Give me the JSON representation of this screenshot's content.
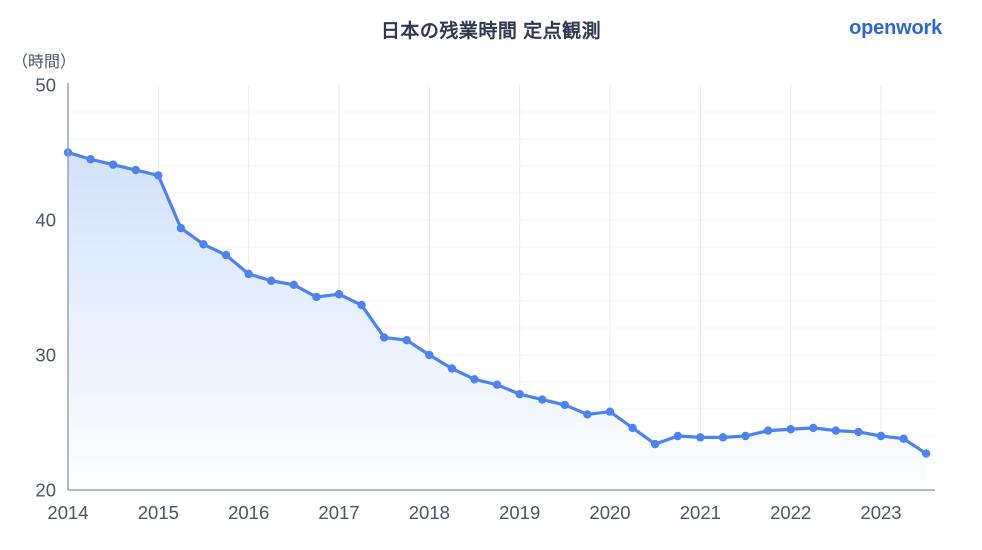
{
  "header": {
    "title": "日本の残業時間 定点観測",
    "brand": "openwork"
  },
  "chart_data": {
    "type": "line",
    "title": "日本の残業時間 定点観測",
    "xlabel": "",
    "ylabel": "（時間）",
    "ylim": [
      20,
      50
    ],
    "y_ticks": [
      50,
      40,
      30,
      20
    ],
    "x_ticks": [
      "2014",
      "2015",
      "2016",
      "2017",
      "2018",
      "2019",
      "2020",
      "2021",
      "2022",
      "2023"
    ],
    "grid": true,
    "legend_position": "none",
    "x": [
      "2014Q1",
      "2014Q2",
      "2014Q3",
      "2014Q4",
      "2015Q1",
      "2015Q2",
      "2015Q3",
      "2015Q4",
      "2016Q1",
      "2016Q2",
      "2016Q3",
      "2016Q4",
      "2017Q1",
      "2017Q2",
      "2017Q3",
      "2017Q4",
      "2018Q1",
      "2018Q2",
      "2018Q3",
      "2018Q4",
      "2019Q1",
      "2019Q2",
      "2019Q3",
      "2019Q4",
      "2020Q1",
      "2020Q2",
      "2020Q3",
      "2020Q4",
      "2021Q1",
      "2021Q2",
      "2021Q3",
      "2021Q4",
      "2022Q1",
      "2022Q2",
      "2022Q3",
      "2022Q4",
      "2023Q1",
      "2023Q2",
      "2023Q3"
    ],
    "values": [
      45.0,
      44.5,
      44.1,
      43.7,
      43.3,
      39.4,
      38.2,
      37.4,
      36.0,
      35.5,
      35.2,
      34.3,
      34.5,
      33.7,
      31.3,
      31.1,
      30.0,
      29.0,
      28.2,
      27.8,
      27.1,
      26.7,
      26.3,
      25.6,
      25.8,
      24.6,
      23.4,
      24.0,
      23.9,
      23.9,
      24.0,
      24.4,
      24.5,
      24.6,
      24.4,
      24.3,
      24.0,
      23.8,
      22.7
    ],
    "colors": {
      "line": "#4c83ec",
      "point": "#4c83ec",
      "area_top": "#d3e2fa",
      "area_bottom": "#fdfeff",
      "title": "#2d3950",
      "brand": "#2e68cf",
      "tick": "#4a5568",
      "axis": "#9aa3ad",
      "grid_vertical": "#e7eaee",
      "grid_horizontal": "#f1f4f8"
    }
  }
}
